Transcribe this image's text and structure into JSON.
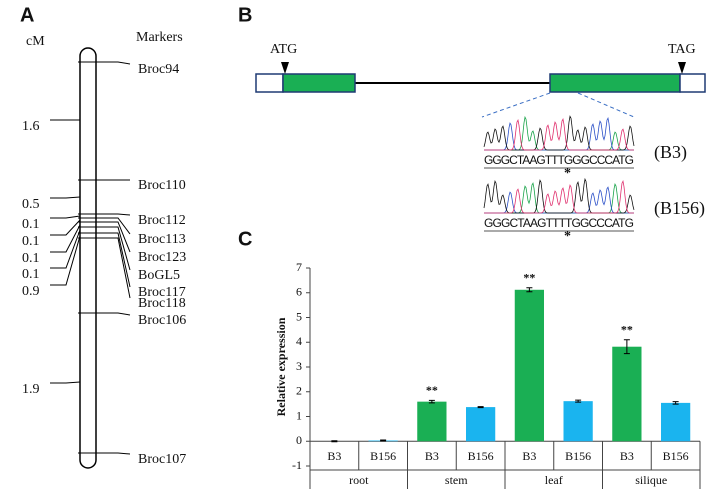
{
  "panel_labels": [
    "A",
    "B",
    "C"
  ],
  "genetic_map": {
    "unit_label": "cM",
    "markers_label": "Markers",
    "markers": [
      "Broc94",
      "Broc110",
      "Broc112",
      "Broc113",
      "Broc123",
      "BoGL5",
      "Broc117",
      "Broc118",
      "Broc106",
      "Broc107"
    ],
    "distances": [
      1.6,
      0.5,
      0.1,
      0.1,
      0.1,
      0.1,
      0.9,
      1.9
    ]
  },
  "gene_structure": {
    "start_codon": "ATG",
    "stop_codon": "TAG",
    "sequences": [
      {
        "name": "(B3)",
        "sequence": "GGGCTAAGTTTGGGCCCATG",
        "mark": "*"
      },
      {
        "name": "(B156)",
        "sequence": "GGGCTAAGTTTTGGCCCATG",
        "mark": "*"
      }
    ]
  },
  "chart_data": {
    "type": "bar",
    "ylabel": "Relative expression",
    "categories": [
      "root",
      "stem",
      "leaf",
      "silique"
    ],
    "series": [
      {
        "name": "B3",
        "color": "#1aaf54",
        "values": [
          0,
          1.6,
          6.12,
          3.82
        ],
        "errors": [
          0.02,
          0.05,
          0.08,
          0.28
        ],
        "significance": [
          null,
          "**",
          "**",
          "**"
        ]
      },
      {
        "name": "B156",
        "color": "#1ab4ef",
        "values": [
          0.03,
          1.38,
          1.62,
          1.55
        ],
        "errors": [
          0.02,
          0.02,
          0.04,
          0.05
        ],
        "significance": [
          null,
          null,
          null,
          null
        ]
      }
    ],
    "ylim": [
      -1,
      7
    ],
    "yticks": [
      -1,
      0,
      1,
      2,
      3,
      4,
      5,
      6,
      7
    ]
  }
}
